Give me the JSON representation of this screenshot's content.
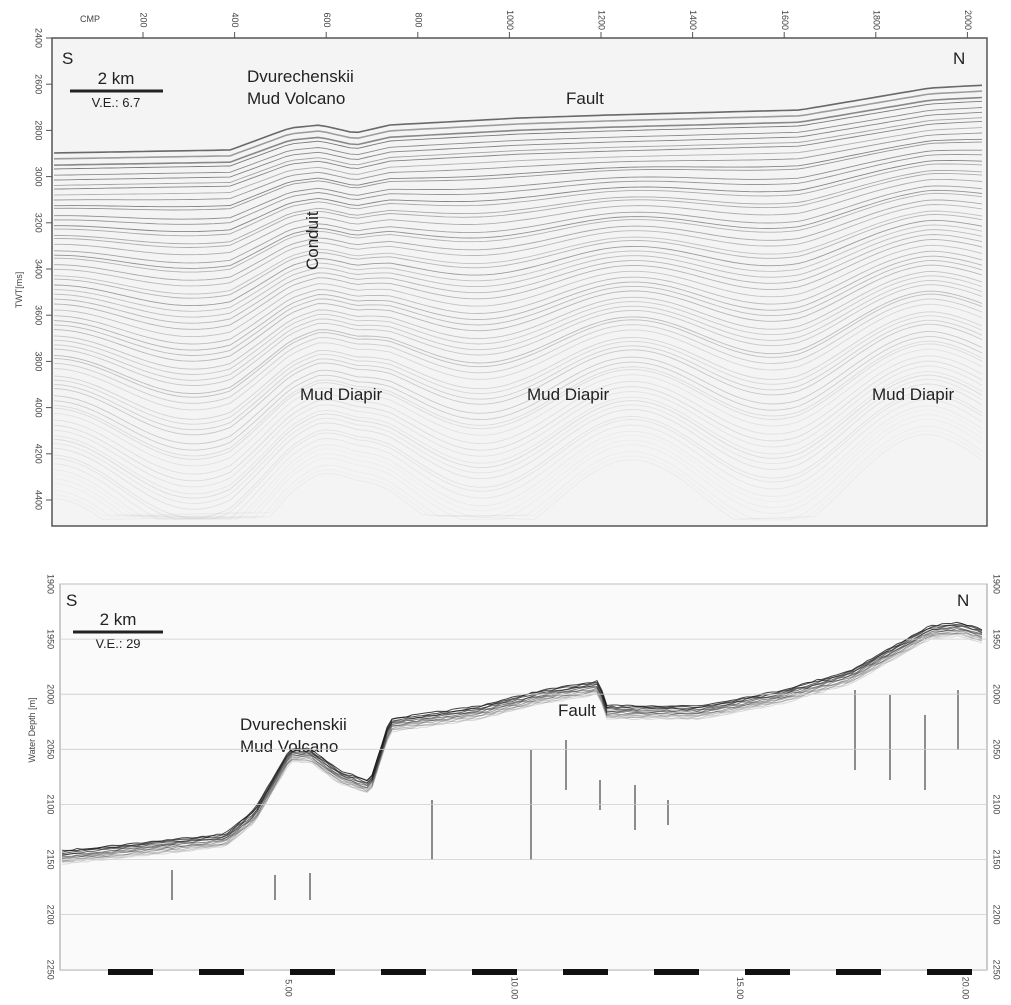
{
  "top_panel": {
    "x_axis_label": "CMP",
    "x_ticks": [
      200,
      400,
      600,
      800,
      1000,
      1200,
      1400,
      1600,
      1800,
      2000
    ],
    "y_axis_label": "TWT[ms]",
    "y_ticks": [
      2400,
      2600,
      2800,
      3000,
      3200,
      3400,
      3600,
      3800,
      4000,
      4200,
      4400
    ],
    "south": "S",
    "north": "N",
    "scale": "2 km",
    "vertical_exaggeration": "V.E.: 6.7",
    "volcano": [
      "Dvurechenskii",
      "Mud Volcano"
    ],
    "fault": "Fault",
    "conduit": "Conduit",
    "diapirs": [
      "Mud Diapir",
      "Mud Diapir",
      "Mud Diapir"
    ]
  },
  "bottom_panel": {
    "y_axis_label": "Water Depth [m]",
    "y_ticks": [
      1900,
      1950,
      2000,
      2050,
      2100,
      2150,
      2200,
      2250
    ],
    "x_ticks": [
      "5.00",
      "10.00",
      "15.00",
      "20.00"
    ],
    "south": "S",
    "north": "N",
    "scale": "2 km",
    "vertical_exaggeration": "V.E.: 29",
    "volcano": [
      "Dvurechenskii",
      "Mud Volcano"
    ],
    "fault": "Fault"
  }
}
